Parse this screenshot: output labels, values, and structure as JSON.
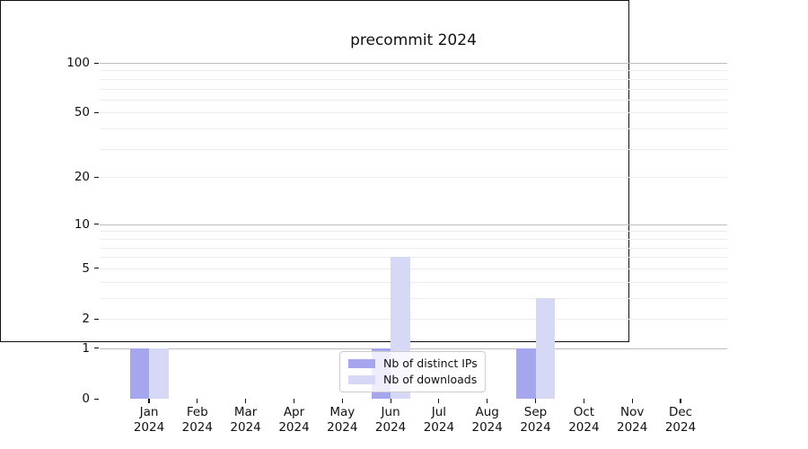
{
  "title": "precommit 2024",
  "colors": {
    "bar_distinct_ips": "#a6a6ef",
    "bar_downloads": "#d7d7f6",
    "grid_minor": "#ececec",
    "grid_major": "#bdbdbd",
    "axis": "#111111",
    "legend_border": "#cccccc"
  },
  "legend": {
    "items": [
      {
        "label": "Nb of distinct IPs",
        "color": "#a6a6ef"
      },
      {
        "label": "Nb of downloads",
        "color": "#d7d7f6"
      }
    ]
  },
  "chart_data": {
    "type": "bar",
    "title": "precommit 2024",
    "xlabel": "",
    "ylabel": "",
    "x_ticks": [
      {
        "month": "Jan",
        "year": "2024"
      },
      {
        "month": "Feb",
        "year": "2024"
      },
      {
        "month": "Mar",
        "year": "2024"
      },
      {
        "month": "Apr",
        "year": "2024"
      },
      {
        "month": "May",
        "year": "2024"
      },
      {
        "month": "Jun",
        "year": "2024"
      },
      {
        "month": "Jul",
        "year": "2024"
      },
      {
        "month": "Aug",
        "year": "2024"
      },
      {
        "month": "Sep",
        "year": "2024"
      },
      {
        "month": "Oct",
        "year": "2024"
      },
      {
        "month": "Nov",
        "year": "2024"
      },
      {
        "month": "Dec",
        "year": "2024"
      }
    ],
    "series": [
      {
        "name": "Nb of distinct IPs",
        "color": "#a6a6ef",
        "values": [
          1,
          0,
          0,
          0,
          0,
          1,
          0,
          0,
          1,
          0,
          0,
          0
        ]
      },
      {
        "name": "Nb of downloads",
        "color": "#d7d7f6",
        "values": [
          1,
          0,
          0,
          0,
          0,
          6,
          0,
          0,
          3,
          0,
          0,
          0
        ]
      }
    ],
    "yscale": "log1p",
    "ylim": [
      0,
      109
    ],
    "y_major_ticks": [
      0,
      1,
      2,
      5,
      10,
      20,
      50,
      100
    ],
    "y_major_gridlines": [
      1,
      10,
      100
    ],
    "y_minor_gridlines": [
      2,
      3,
      4,
      5,
      6,
      7,
      8,
      9,
      20,
      30,
      40,
      50,
      60,
      70,
      80,
      90
    ],
    "grid": true,
    "legend_position": "lower center"
  }
}
